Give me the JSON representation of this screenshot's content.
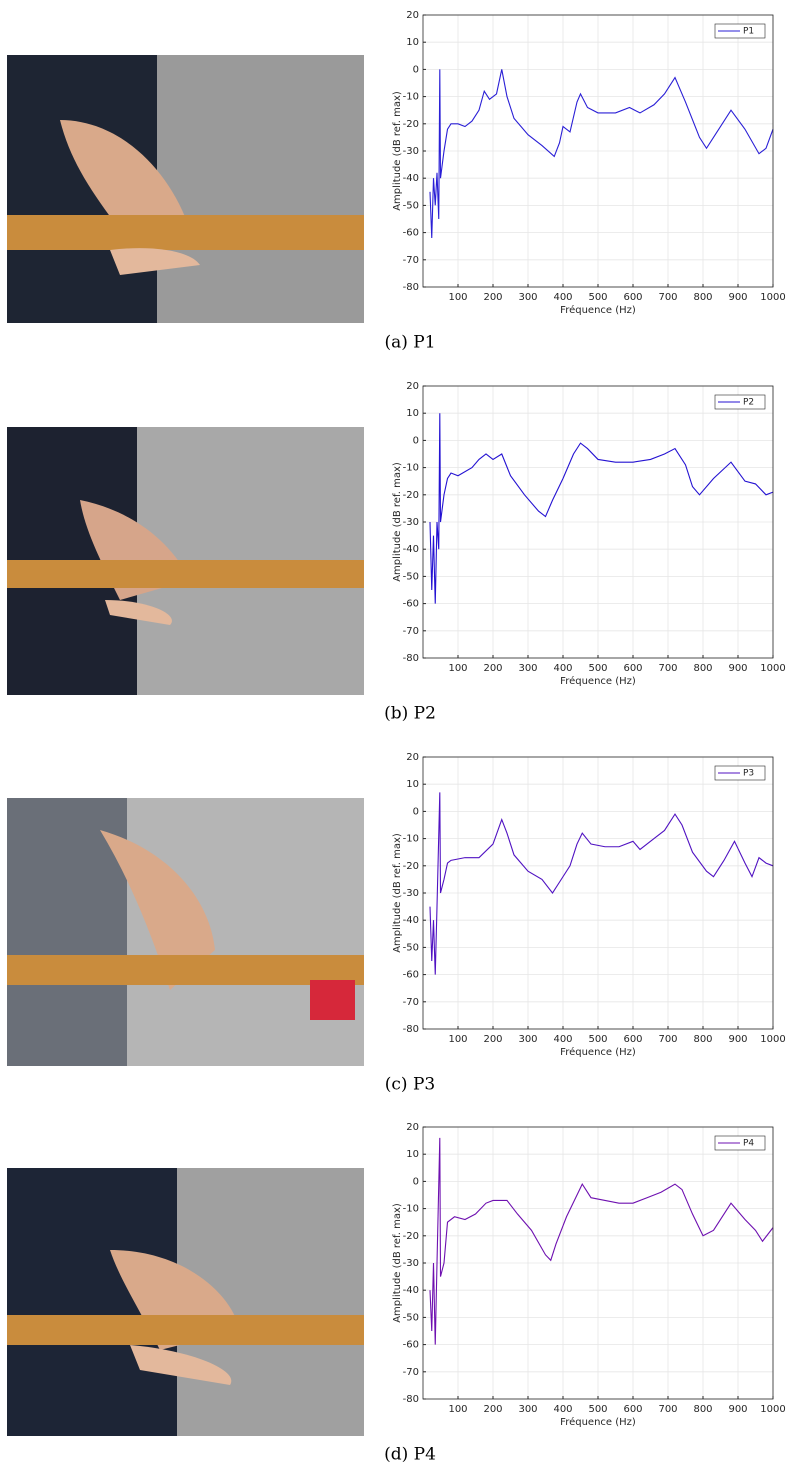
{
  "chart_data": [
    {
      "type": "line",
      "xlabel": "Fréquence (Hz)",
      "ylabel": "Amplitude (dB ref. max)",
      "xlim": [
        0,
        1000
      ],
      "ylim": [
        -80,
        20
      ],
      "xticks": [
        100,
        200,
        300,
        400,
        500,
        600,
        700,
        800,
        900,
        1000
      ],
      "yticks": [
        -80,
        -70,
        -60,
        -50,
        -40,
        -30,
        -20,
        -10,
        0,
        10,
        20
      ],
      "grid": true,
      "legend": "upper right",
      "x": [
        20,
        25,
        30,
        35,
        40,
        45,
        48,
        50,
        55,
        60,
        70,
        80,
        100,
        120,
        140,
        160,
        175,
        190,
        210,
        225,
        240,
        260,
        300,
        340,
        375,
        390,
        400,
        420,
        440,
        450,
        470,
        500,
        550,
        590,
        620,
        660,
        690,
        720,
        750,
        790,
        810,
        840,
        880,
        920,
        960,
        980,
        1000
      ],
      "series": [
        {
          "name": "P1",
          "color": "#2a1fd6",
          "values": [
            -45,
            -62,
            -40,
            -50,
            -38,
            -55,
            0,
            -40,
            -35,
            -30,
            -22,
            -20,
            -20,
            -21,
            -19,
            -15,
            -8,
            -11,
            -9,
            0,
            -10,
            -18,
            -24,
            -28,
            -32,
            -27,
            -21,
            -23,
            -12,
            -9,
            -14,
            -16,
            -16,
            -14,
            -16,
            -13,
            -9,
            -3,
            -12,
            -25,
            -29,
            -23,
            -15,
            -22,
            -31,
            -29,
            -22
          ]
        }
      ]
    },
    {
      "type": "line",
      "xlabel": "Fréquence (Hz)",
      "ylabel": "Amplitude (dB ref. max)",
      "xlim": [
        0,
        1000
      ],
      "ylim": [
        -80,
        20
      ],
      "xticks": [
        100,
        200,
        300,
        400,
        500,
        600,
        700,
        800,
        900,
        1000
      ],
      "yticks": [
        -80,
        -70,
        -60,
        -50,
        -40,
        -30,
        -20,
        -10,
        0,
        10,
        20
      ],
      "grid": true,
      "legend": "upper right",
      "x": [
        20,
        25,
        30,
        35,
        40,
        45,
        48,
        50,
        60,
        70,
        80,
        100,
        140,
        160,
        180,
        200,
        225,
        250,
        290,
        330,
        350,
        370,
        400,
        430,
        450,
        470,
        500,
        550,
        600,
        650,
        690,
        720,
        750,
        770,
        790,
        830,
        880,
        920,
        950,
        980,
        1000
      ],
      "series": [
        {
          "name": "P2",
          "color": "#2412d2",
          "values": [
            -30,
            -55,
            -35,
            -60,
            -30,
            -40,
            10,
            -30,
            -20,
            -14,
            -12,
            -13,
            -10,
            -7,
            -5,
            -7,
            -5,
            -13,
            -20,
            -26,
            -28,
            -22,
            -14,
            -5,
            -1,
            -3,
            -7,
            -8,
            -8,
            -7,
            -5,
            -3,
            -9,
            -17,
            -20,
            -14,
            -8,
            -15,
            -16,
            -20,
            -19
          ]
        }
      ]
    },
    {
      "type": "line",
      "xlabel": "Fréquence (Hz)",
      "ylabel": "Amplitude (dB ref. max)",
      "xlim": [
        0,
        1000
      ],
      "ylim": [
        -80,
        20
      ],
      "xticks": [
        100,
        200,
        300,
        400,
        500,
        600,
        700,
        800,
        900,
        1000
      ],
      "yticks": [
        -80,
        -70,
        -60,
        -50,
        -40,
        -30,
        -20,
        -10,
        0,
        10,
        20
      ],
      "grid": true,
      "legend": "upper right",
      "x": [
        20,
        25,
        30,
        35,
        40,
        48,
        50,
        60,
        70,
        80,
        120,
        160,
        200,
        225,
        240,
        260,
        300,
        340,
        370,
        390,
        420,
        440,
        455,
        480,
        520,
        560,
        600,
        620,
        660,
        690,
        720,
        740,
        770,
        810,
        830,
        860,
        890,
        920,
        940,
        960,
        980,
        1000
      ],
      "series": [
        {
          "name": "P3",
          "color": "#5012c2",
          "values": [
            -35,
            -55,
            -40,
            -60,
            -35,
            7,
            -30,
            -25,
            -19,
            -18,
            -17,
            -17,
            -12,
            -3,
            -8,
            -16,
            -22,
            -25,
            -30,
            -26,
            -20,
            -12,
            -8,
            -12,
            -13,
            -13,
            -11,
            -14,
            -10,
            -7,
            -1,
            -5,
            -15,
            -22,
            -24,
            -18,
            -11,
            -19,
            -24,
            -17,
            -19,
            -20
          ]
        }
      ]
    },
    {
      "type": "line",
      "xlabel": "Fréquence (Hz)",
      "ylabel": "Amplitude (dB ref. max)",
      "xlim": [
        0,
        1000
      ],
      "ylim": [
        -80,
        20
      ],
      "xticks": [
        100,
        200,
        300,
        400,
        500,
        600,
        700,
        800,
        900,
        1000
      ],
      "yticks": [
        -80,
        -70,
        -60,
        -50,
        -40,
        -30,
        -20,
        -10,
        0,
        10,
        20
      ],
      "grid": true,
      "legend": "upper right",
      "x": [
        20,
        25,
        30,
        35,
        40,
        48,
        50,
        60,
        70,
        90,
        120,
        150,
        180,
        200,
        240,
        270,
        310,
        350,
        365,
        380,
        410,
        440,
        455,
        480,
        520,
        560,
        600,
        640,
        680,
        720,
        740,
        770,
        800,
        830,
        880,
        920,
        950,
        970,
        1000
      ],
      "series": [
        {
          "name": "P4",
          "color": "#6e10b0",
          "values": [
            -40,
            -55,
            -30,
            -60,
            -30,
            16,
            -35,
            -30,
            -15,
            -13,
            -14,
            -12,
            -8,
            -7,
            -7,
            -12,
            -18,
            -27,
            -29,
            -23,
            -13,
            -5,
            -1,
            -6,
            -7,
            -8,
            -8,
            -6,
            -4,
            -1,
            -3,
            -12,
            -20,
            -18,
            -8,
            -14,
            -18,
            -22,
            -17
          ]
        }
      ]
    }
  ],
  "captions": [
    "(a) P1",
    "(b) P2",
    "(c) P3",
    "(d) P4"
  ]
}
